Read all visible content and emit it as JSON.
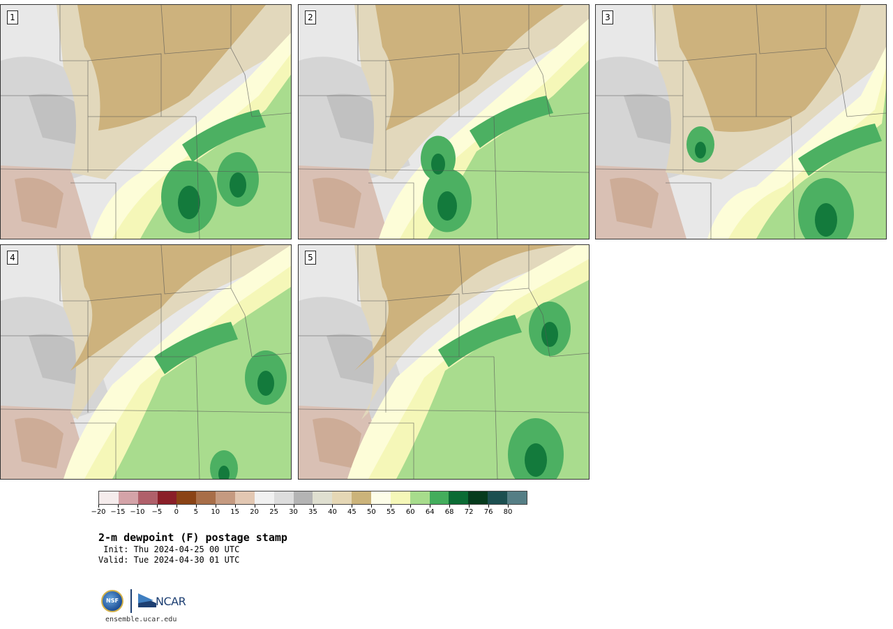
{
  "panels": [
    {
      "number": "1"
    },
    {
      "number": "2"
    },
    {
      "number": "3"
    },
    {
      "number": "4"
    },
    {
      "number": "5"
    }
  ],
  "colorbar": {
    "colors": [
      "#f5ecec",
      "#d4a3a8",
      "#b0606a",
      "#8a1f28",
      "#8a4315",
      "#a86e48",
      "#c59a80",
      "#e2c7b2",
      "#f1f1f1",
      "#dddddd",
      "#b4b4b4",
      "#dfdfd0",
      "#e5d7b5",
      "#cbb37a",
      "#fdfde8",
      "#f5f7b8",
      "#a7dc8c",
      "#43ad5c",
      "#0b6b34",
      "#063b1d",
      "#1c4f50",
      "#557e85"
    ],
    "tick_labels": [
      "−20",
      "−15",
      "−10",
      "−5",
      "0",
      "5",
      "10",
      "15",
      "20",
      "25",
      "30",
      "35",
      "40",
      "45",
      "50",
      "55",
      "60",
      "64",
      "68",
      "72",
      "76",
      "80"
    ]
  },
  "title": "2-m dewpoint (F) postage stamp",
  "init_text": " Init: Thu 2024-04-25 00 UTC",
  "valid_text": "Valid: Tue 2024-04-30 01 UTC",
  "logo": {
    "nsf_text": "NSF",
    "ncar_text": "NCAR"
  },
  "site": "ensemble.ucar.edu"
}
